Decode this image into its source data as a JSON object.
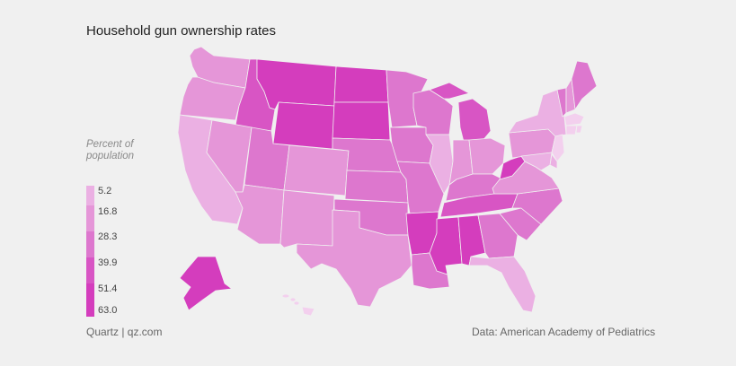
{
  "title": "Household gun ownership rates",
  "legend": {
    "title": "Percent of population",
    "title_line1": "Percent of",
    "title_line2": "population",
    "breaks": [
      "5.2",
      "16.8",
      "28.3",
      "39.9",
      "51.4",
      "63.0"
    ],
    "colors": [
      "#f3d0ee",
      "#ebb0e3",
      "#e596d8",
      "#dd77ce",
      "#d855c4",
      "#d43dbd"
    ]
  },
  "source_left": "Quartz | qz.com",
  "source_right": "Data: American Academy of Pediatrics",
  "map_regions": [
    {
      "id": "WA",
      "level": 2
    },
    {
      "id": "OR",
      "level": 2
    },
    {
      "id": "CA",
      "level": 1
    },
    {
      "id": "ID",
      "level": 4
    },
    {
      "id": "NV",
      "level": 2
    },
    {
      "id": "UT",
      "level": 3
    },
    {
      "id": "AZ",
      "level": 2
    },
    {
      "id": "MT",
      "level": 5
    },
    {
      "id": "WY",
      "level": 5
    },
    {
      "id": "CO",
      "level": 2
    },
    {
      "id": "NM",
      "level": 2
    },
    {
      "id": "ND",
      "level": 5
    },
    {
      "id": "SD",
      "level": 5
    },
    {
      "id": "NE",
      "level": 3
    },
    {
      "id": "KS",
      "level": 3
    },
    {
      "id": "OK",
      "level": 3
    },
    {
      "id": "TX",
      "level": 2
    },
    {
      "id": "MN",
      "level": 3
    },
    {
      "id": "IA",
      "level": 3
    },
    {
      "id": "MO",
      "level": 3
    },
    {
      "id": "AR",
      "level": 5
    },
    {
      "id": "LA",
      "level": 3
    },
    {
      "id": "WI",
      "level": 3
    },
    {
      "id": "IL",
      "level": 1
    },
    {
      "id": "MI",
      "level": 4
    },
    {
      "id": "IN",
      "level": 2
    },
    {
      "id": "OH",
      "level": 2
    },
    {
      "id": "KY",
      "level": 3
    },
    {
      "id": "TN",
      "level": 4
    },
    {
      "id": "MS",
      "level": 5
    },
    {
      "id": "AL",
      "level": 5
    },
    {
      "id": "GA",
      "level": 3
    },
    {
      "id": "FL",
      "level": 1
    },
    {
      "id": "SC",
      "level": 3
    },
    {
      "id": "NC",
      "level": 3
    },
    {
      "id": "VA",
      "level": 2
    },
    {
      "id": "WV",
      "level": 5
    },
    {
      "id": "PA",
      "level": 2
    },
    {
      "id": "NY",
      "level": 1
    },
    {
      "id": "VT",
      "level": 3
    },
    {
      "id": "NH",
      "level": 2
    },
    {
      "id": "ME",
      "level": 3
    },
    {
      "id": "MA",
      "level": 0
    },
    {
      "id": "CT",
      "level": 0
    },
    {
      "id": "RI",
      "level": 0
    },
    {
      "id": "NJ",
      "level": 0
    },
    {
      "id": "DE",
      "level": 1
    },
    {
      "id": "MD",
      "level": 1
    },
    {
      "id": "AK",
      "level": 5
    },
    {
      "id": "HI",
      "level": 0
    }
  ]
}
